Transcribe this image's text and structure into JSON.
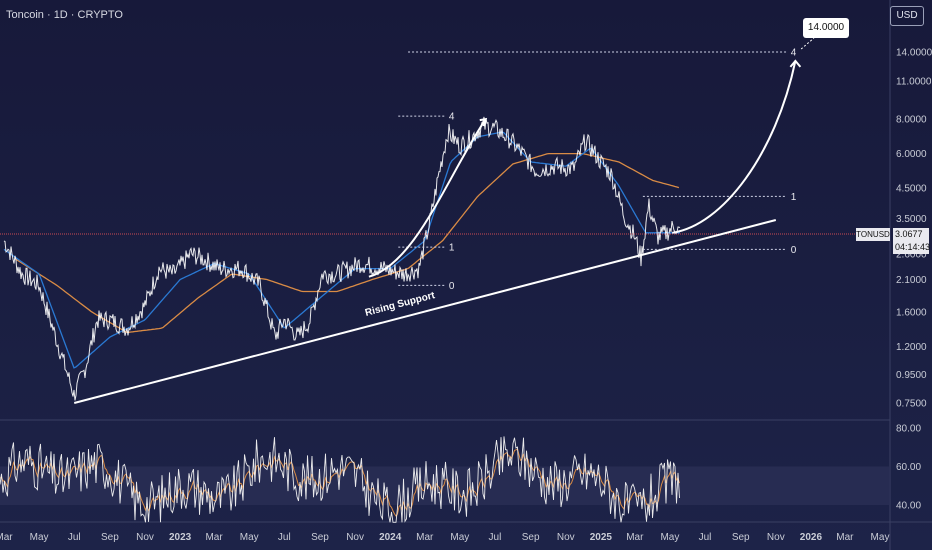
{
  "header": {
    "symbol_title": "Toncoin · 1D · CRYPTO",
    "currency": "USD"
  },
  "price_tag": {
    "symbol": "TONUSD",
    "price": "3.0677",
    "countdown": "04:14:43"
  },
  "target_tag": "14.0000",
  "colors": {
    "background": "#1b1f3a",
    "price_line": "#ffffff",
    "ma_fast": "#2a79d3",
    "ma_slow": "#d98b45",
    "rsi_line": "#f4f4f4",
    "rsi_ma": "#d98b45",
    "rsi_band": "#2b2f55",
    "projection": "#ffffff",
    "current_price_line": "#c84a55",
    "price_tag_bg": "#e9e9ef"
  },
  "chart_data": [
    {
      "type": "line",
      "title": "Toncoin · 1D · CRYPTO",
      "scale": "log",
      "y_unit": "USD",
      "y_ticks": [
        "14.0000",
        "11.0000",
        "8.0000",
        "6.0000",
        "4.5000",
        "3.5000",
        "2.6000",
        "2.1000",
        "1.6000",
        "1.2000",
        "0.9500",
        "0.7500"
      ],
      "x_ticks": [
        "Mar",
        "May",
        "Jul",
        "Sep",
        "Nov",
        "2023",
        "Mar",
        "May",
        "Jul",
        "Sep",
        "Nov",
        "2024",
        "Mar",
        "May",
        "Jul",
        "Sep",
        "Nov",
        "2025",
        "Mar",
        "May",
        "Jul",
        "Sep",
        "Nov",
        "2026",
        "Mar",
        "May"
      ],
      "price_anchors": [
        [
          "2022-03-01",
          2.9
        ],
        [
          "2022-04-01",
          2.2
        ],
        [
          "2022-05-01",
          2.0
        ],
        [
          "2022-06-10",
          1.1
        ],
        [
          "2022-07-01",
          0.8
        ],
        [
          "2022-07-20",
          1.0
        ],
        [
          "2022-08-10",
          1.5
        ],
        [
          "2022-09-01",
          1.5
        ],
        [
          "2022-10-01",
          1.4
        ],
        [
          "2022-11-01",
          1.7
        ],
        [
          "2022-11-25",
          2.3
        ],
        [
          "2022-12-20",
          2.2
        ],
        [
          "2023-01-20",
          2.6
        ],
        [
          "2023-02-10",
          2.5
        ],
        [
          "2023-03-10",
          2.3
        ],
        [
          "2023-04-20",
          2.3
        ],
        [
          "2023-05-20",
          2.0
        ],
        [
          "2023-06-15",
          1.3
        ],
        [
          "2023-07-01",
          1.5
        ],
        [
          "2023-07-25",
          1.3
        ],
        [
          "2023-08-15",
          1.5
        ],
        [
          "2023-09-05",
          2.2
        ],
        [
          "2023-10-01",
          2.2
        ],
        [
          "2023-11-10",
          2.4
        ],
        [
          "2023-12-20",
          2.3
        ],
        [
          "2024-01-25",
          2.2
        ],
        [
          "2024-02-20",
          2.3
        ],
        [
          "2024-03-10",
          3.4
        ],
        [
          "2024-03-25",
          5.0
        ],
        [
          "2024-04-10",
          7.2
        ],
        [
          "2024-05-01",
          6.4
        ],
        [
          "2024-05-20",
          6.8
        ],
        [
          "2024-06-10",
          7.6
        ],
        [
          "2024-07-01",
          7.4
        ],
        [
          "2024-07-25",
          6.8
        ],
        [
          "2024-08-15",
          6.1
        ],
        [
          "2024-09-10",
          5.2
        ],
        [
          "2024-10-10",
          5.4
        ],
        [
          "2024-11-15",
          5.3
        ],
        [
          "2024-12-05",
          6.7
        ],
        [
          "2025-01-01",
          5.6
        ],
        [
          "2025-01-20",
          5.0
        ],
        [
          "2025-02-10",
          3.6
        ],
        [
          "2025-03-01",
          3.0
        ],
        [
          "2025-03-12",
          2.5
        ],
        [
          "2025-03-25",
          3.9
        ],
        [
          "2025-04-10",
          3.0
        ],
        [
          "2025-04-25",
          3.1
        ],
        [
          "2025-05-10",
          3.3
        ],
        [
          "2025-05-20",
          3.07
        ]
      ],
      "ma_fast_anchors": [
        [
          "2022-03-01",
          2.7
        ],
        [
          "2022-05-01",
          2.2
        ],
        [
          "2022-07-01",
          1.0
        ],
        [
          "2022-09-01",
          1.3
        ],
        [
          "2022-11-01",
          1.5
        ],
        [
          "2023-01-01",
          2.1
        ],
        [
          "2023-03-01",
          2.4
        ],
        [
          "2023-05-01",
          2.2
        ],
        [
          "2023-07-01",
          1.4
        ],
        [
          "2023-09-01",
          1.8
        ],
        [
          "2023-11-01",
          2.3
        ],
        [
          "2024-01-01",
          2.3
        ],
        [
          "2024-03-01",
          2.9
        ],
        [
          "2024-04-15",
          5.6
        ],
        [
          "2024-06-01",
          6.9
        ],
        [
          "2024-07-15",
          7.2
        ],
        [
          "2024-09-01",
          5.6
        ],
        [
          "2024-11-01",
          5.4
        ],
        [
          "2024-12-15",
          6.3
        ],
        [
          "2025-02-01",
          4.6
        ],
        [
          "2025-03-20",
          3.1
        ],
        [
          "2025-05-20",
          3.1
        ]
      ],
      "ma_slow_anchors": [
        [
          "2022-03-20",
          2.5
        ],
        [
          "2022-06-01",
          2.0
        ],
        [
          "2022-08-01",
          1.6
        ],
        [
          "2022-10-01",
          1.35
        ],
        [
          "2022-12-01",
          1.4
        ],
        [
          "2023-02-01",
          1.8
        ],
        [
          "2023-04-01",
          2.2
        ],
        [
          "2023-06-01",
          2.1
        ],
        [
          "2023-08-01",
          1.9
        ],
        [
          "2023-10-01",
          1.9
        ],
        [
          "2023-12-01",
          2.1
        ],
        [
          "2024-02-01",
          2.3
        ],
        [
          "2024-04-01",
          2.9
        ],
        [
          "2024-06-01",
          4.2
        ],
        [
          "2024-08-01",
          5.5
        ],
        [
          "2024-10-01",
          6.0
        ],
        [
          "2024-12-01",
          6.0
        ],
        [
          "2025-02-01",
          5.6
        ],
        [
          "2025-04-01",
          4.8
        ],
        [
          "2025-05-20",
          4.5
        ]
      ],
      "annotations": {
        "trendline_label": "Rising Support",
        "support_line": [
          [
            "2022-07-01",
            0.75
          ],
          [
            "2025-11-01",
            3.45
          ]
        ],
        "past_fib": {
          "anchors": [
            [
              "2024-03-01",
              0
            ],
            [
              "2024-04-05",
              1
            ],
            [
              "2024-06-20",
              4
            ]
          ],
          "levels": [
            "0",
            "1",
            "4"
          ],
          "values": [
            2.0,
            2.75,
            8.2
          ]
        },
        "current_fib": {
          "levels": [
            "0",
            "1",
            "4"
          ],
          "values": [
            2.7,
            4.2,
            14.0
          ]
        },
        "projection_target": "14.0000"
      }
    },
    {
      "type": "line",
      "title": "",
      "indicator": "RSI",
      "y_ticks": [
        "80.00",
        "60.00",
        "40.00"
      ],
      "ylim": [
        30,
        82
      ],
      "band": [
        40,
        60
      ]
    }
  ]
}
